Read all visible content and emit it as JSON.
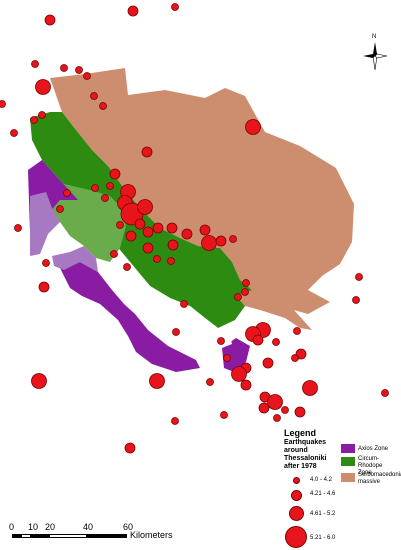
{
  "legend": {
    "title": "Legend",
    "quakes_title": "Earthquakes around Thessaloniki after 1978",
    "magnitude_classes": [
      "4.0 - 4.2",
      "4.21 - 4.6",
      "4.61 - 5.2",
      "5.21 - 6.0"
    ],
    "zones": [
      {
        "name": "Axios Zone",
        "color": "#8a1ca3"
      },
      {
        "name": "Circum-Rhodope Zone",
        "color": "#2e8b12"
      },
      {
        "name": "Serbomacedonian massive",
        "color": "#cd8e6f"
      }
    ]
  },
  "scale": {
    "ticks": [
      "0",
      "10",
      "20",
      "40",
      "60"
    ],
    "unit": "Kilometers"
  },
  "north_label": "N",
  "colors": {
    "quake": "#e8141b",
    "axios": "#8a1ca3",
    "axios_light": "#a679c2",
    "rhodope": "#2e8b12",
    "rhodope_light": "#6aac4c",
    "serbo": "#cd8e6f"
  }
}
